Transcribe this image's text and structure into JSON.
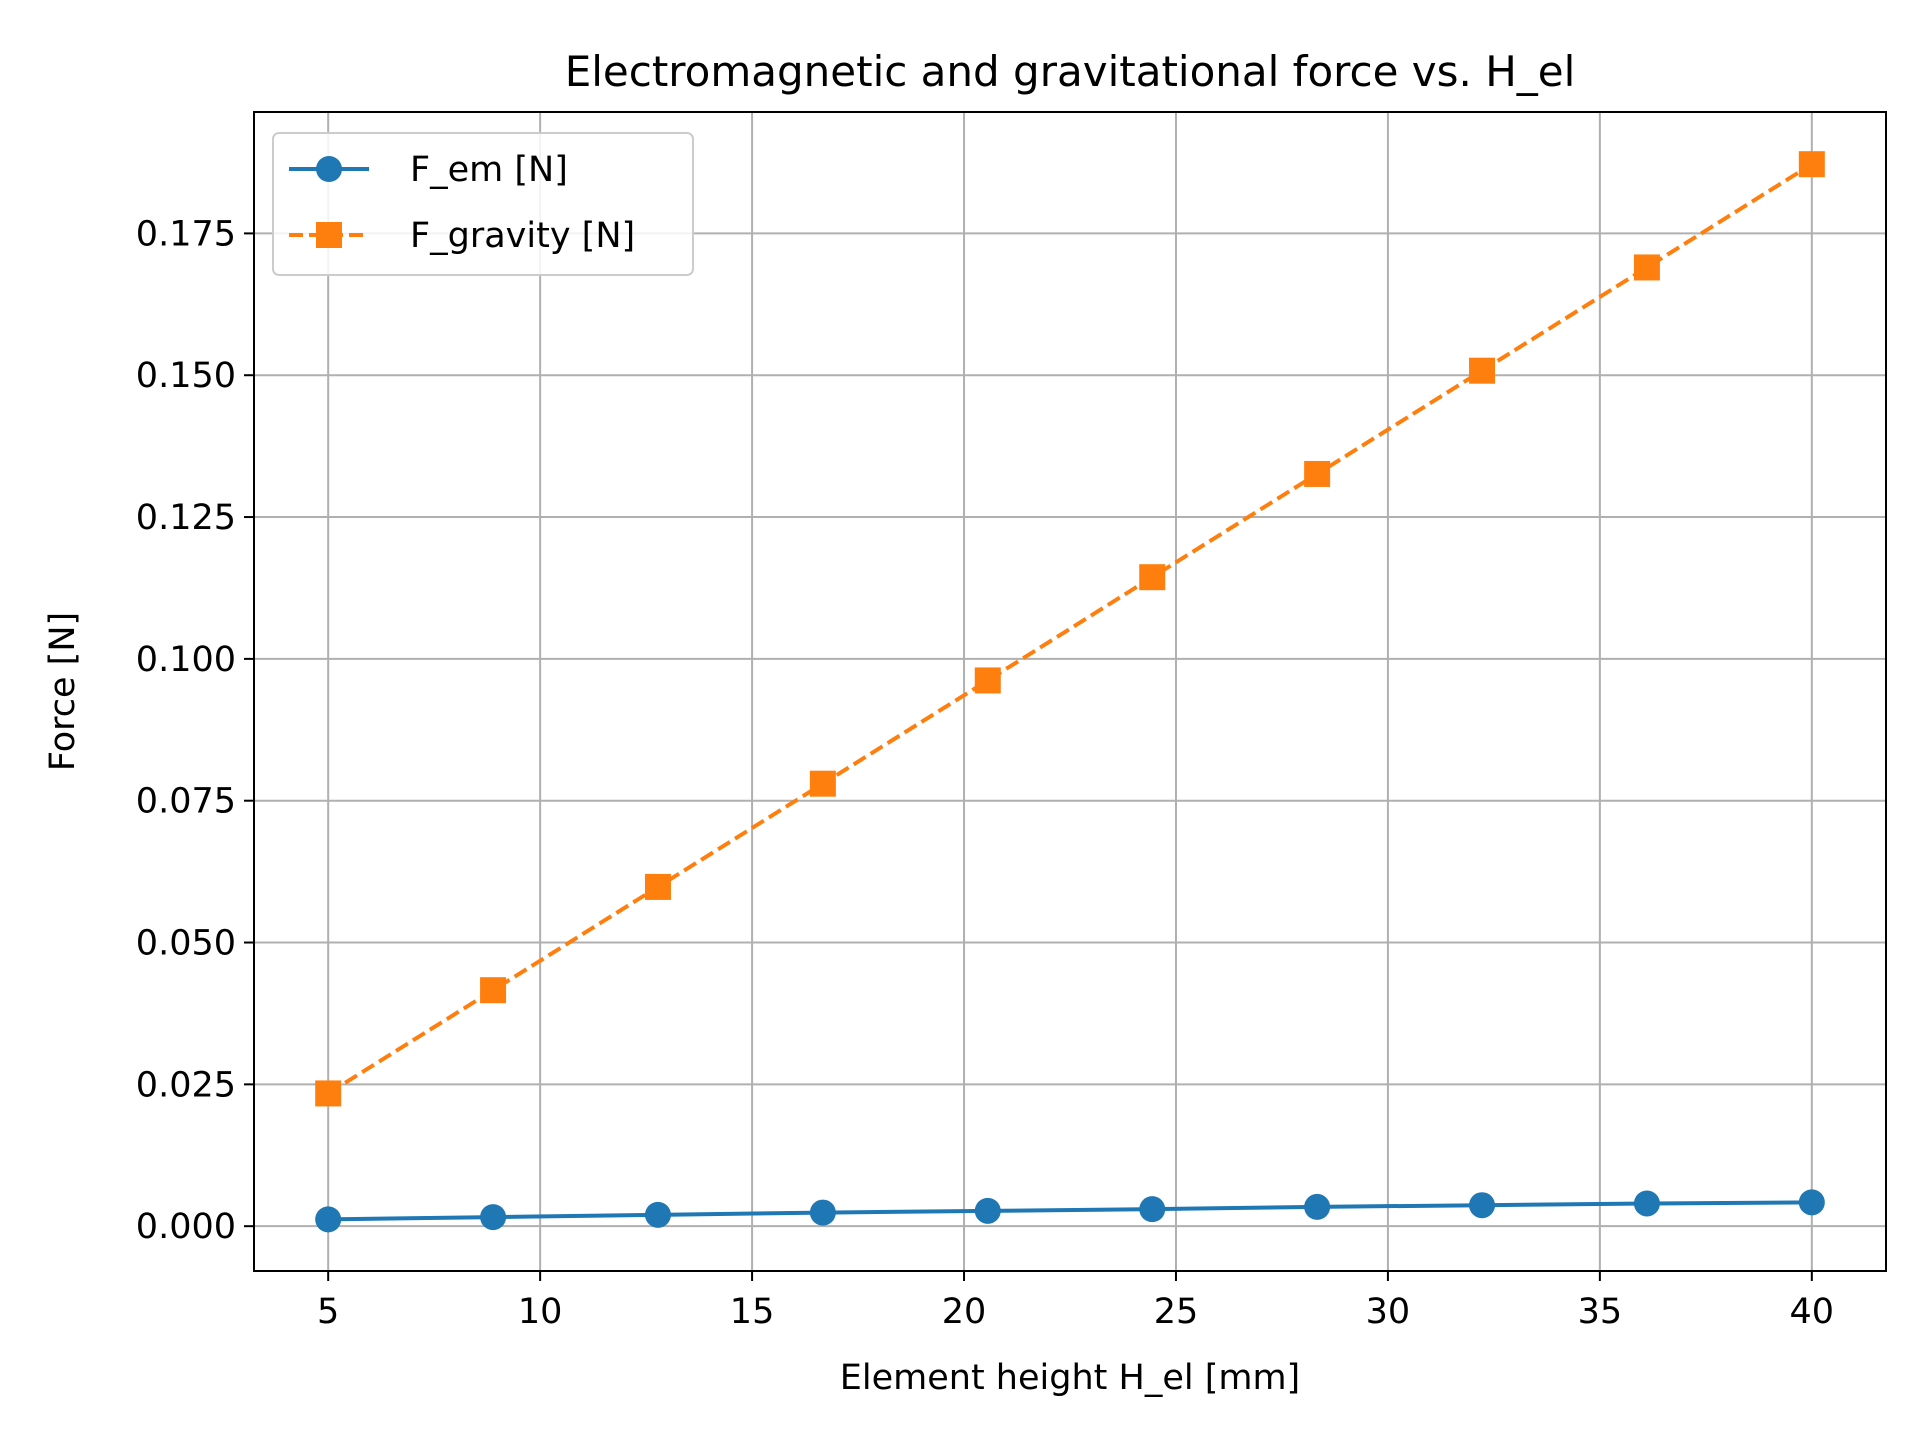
{
  "chart_data": {
    "type": "line",
    "title": "Electromagnetic and gravitational force vs. H_el",
    "xlabel": "Element height H_el [mm]",
    "ylabel": "Force [N]",
    "xlim": [
      3.25,
      41.75
    ],
    "ylim": [
      -0.0079,
      0.1964
    ],
    "xticks": [
      5,
      10,
      15,
      20,
      25,
      30,
      35,
      40
    ],
    "xtick_labels": [
      "5",
      "10",
      "15",
      "20",
      "25",
      "30",
      "35",
      "40"
    ],
    "yticks": [
      0.0,
      0.025,
      0.05,
      0.075,
      0.1,
      0.125,
      0.15,
      0.175
    ],
    "ytick_labels": [
      "0.000",
      "0.025",
      "0.050",
      "0.075",
      "0.100",
      "0.125",
      "0.150",
      "0.175"
    ],
    "grid": true,
    "legend_position": "upper-left",
    "x": [
      5.0,
      8.89,
      12.78,
      16.67,
      20.56,
      24.44,
      28.33,
      32.22,
      36.11,
      40.0
    ],
    "series": [
      {
        "name": "F_em [N]",
        "color": "#1f77b4",
        "marker": "circle",
        "line_style": "solid",
        "values": [
          0.0012,
          0.0016,
          0.002,
          0.0024,
          0.0027,
          0.003,
          0.0034,
          0.0037,
          0.004,
          0.0042
        ]
      },
      {
        "name": "F_gravity [N]",
        "color": "#ff7f0e",
        "marker": "square",
        "line_style": "dashed",
        "values": [
          0.0234,
          0.0416,
          0.0598,
          0.078,
          0.0962,
          0.1144,
          0.1326,
          0.1508,
          0.169,
          0.1872
        ]
      }
    ]
  }
}
